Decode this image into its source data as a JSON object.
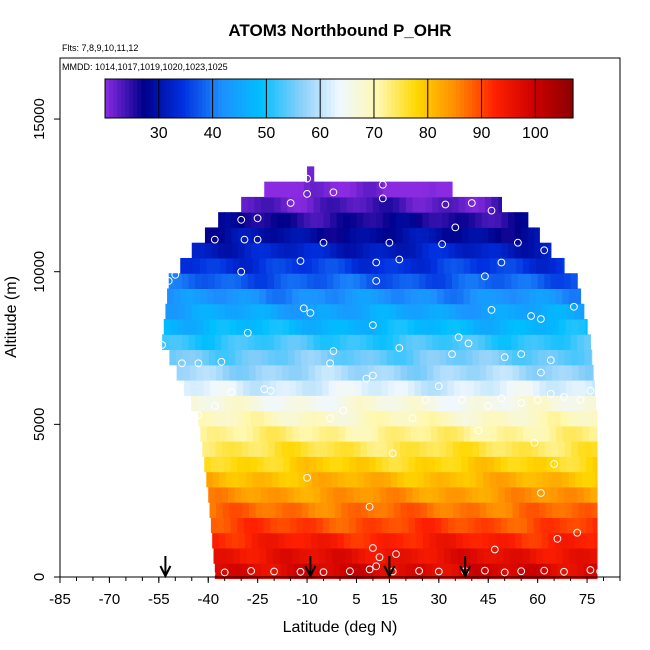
{
  "chart_data": {
    "type": "heatmap",
    "title": "ATOM3 Northbound P_OHR",
    "annotations": [
      "Flts: 7,8,9,10,11,12",
      "MMDD: 1014,1017,1019,1020,1023,1025"
    ],
    "xlabel": "Latitude (deg N)",
    "ylabel": "Altitude (m)",
    "xlim": [
      -85,
      85
    ],
    "ylim": [
      0,
      17000
    ],
    "x_ticks": [
      -85,
      -70,
      -55,
      -40,
      -25,
      -10,
      5,
      15,
      30,
      45,
      60,
      75
    ],
    "x_tick_labels": [
      "-85",
      "-70",
      "-55",
      "-40",
      "-25",
      "-10",
      "5",
      "15",
      "30",
      "45",
      "60",
      "75"
    ],
    "y_ticks": [
      0,
      5000,
      10000,
      15000
    ],
    "y_tick_labels": [
      "0",
      "5000",
      "10000",
      "15000"
    ],
    "colorbar": {
      "min": 20,
      "max": 107,
      "ticks": [
        30,
        40,
        50,
        60,
        70,
        80,
        90,
        100
      ],
      "tick_labels": [
        "30",
        "40",
        "50",
        "60",
        "70",
        "80",
        "90",
        "100"
      ],
      "colors": [
        "#8a2be2",
        "#00008b",
        "#0030e0",
        "#1e90ff",
        "#00bfff",
        "#87cefa",
        "#f0f8ff",
        "#fff8b0",
        "#ffd700",
        "#ff8c00",
        "#ff2000",
        "#cc0000",
        "#8b0000"
      ]
    },
    "altitude_values": [
      {
        "alt": 200,
        "value": 98
      },
      {
        "alt": 700,
        "value": 96
      },
      {
        "alt": 1200,
        "value": 93
      },
      {
        "alt": 1700,
        "value": 90
      },
      {
        "alt": 2200,
        "value": 87
      },
      {
        "alt": 2700,
        "value": 84
      },
      {
        "alt": 3200,
        "value": 81
      },
      {
        "alt": 3700,
        "value": 78
      },
      {
        "alt": 4200,
        "value": 75
      },
      {
        "alt": 4700,
        "value": 72
      },
      {
        "alt": 5200,
        "value": 69
      },
      {
        "alt": 5700,
        "value": 66
      },
      {
        "alt": 6200,
        "value": 62
      },
      {
        "alt": 6700,
        "value": 58
      },
      {
        "alt": 7200,
        "value": 55
      },
      {
        "alt": 7700,
        "value": 52
      },
      {
        "alt": 8200,
        "value": 48
      },
      {
        "alt": 8700,
        "value": 45
      },
      {
        "alt": 9200,
        "value": 42
      },
      {
        "alt": 9700,
        "value": 38
      },
      {
        "alt": 10200,
        "value": 35
      },
      {
        "alt": 10700,
        "value": 32
      },
      {
        "alt": 11200,
        "value": 29
      },
      {
        "alt": 11700,
        "value": 26
      },
      {
        "alt": 12200,
        "value": 23
      },
      {
        "alt": 12700,
        "value": 20
      },
      {
        "alt": 13200,
        "value": 20
      }
    ],
    "coverage_extent": [
      {
        "alt": 200,
        "lat_min": -38,
        "lat_max": 78
      },
      {
        "alt": 2700,
        "lat_min": -40,
        "lat_max": 78
      },
      {
        "alt": 5200,
        "lat_min": -43,
        "lat_max": 78
      },
      {
        "alt": 7700,
        "lat_min": -54,
        "lat_max": 76
      },
      {
        "alt": 9700,
        "lat_min": -52,
        "lat_max": 72
      },
      {
        "alt": 10700,
        "lat_min": -45,
        "lat_max": 64
      },
      {
        "alt": 11700,
        "lat_min": -37,
        "lat_max": 57
      },
      {
        "alt": 12200,
        "lat_min": -30,
        "lat_max": 49
      },
      {
        "alt": 12700,
        "lat_min": -23,
        "lat_max": 34
      },
      {
        "alt": 13200,
        "lat_min": -10,
        "lat_max": -8
      }
    ],
    "markers_lat": [
      -53,
      -9,
      15,
      38
    ],
    "points": [
      [
        -39,
        100
      ],
      [
        -35,
        150
      ],
      [
        -27,
        200
      ],
      [
        -20,
        180
      ],
      [
        -12,
        170
      ],
      [
        -5,
        160
      ],
      [
        3,
        190
      ],
      [
        9,
        250
      ],
      [
        11,
        350
      ],
      [
        16,
        180
      ],
      [
        24,
        200
      ],
      [
        30,
        180
      ],
      [
        38,
        190
      ],
      [
        44,
        210
      ],
      [
        50,
        150
      ],
      [
        55,
        190
      ],
      [
        62,
        210
      ],
      [
        68,
        170
      ],
      [
        76,
        230
      ],
      [
        79,
        180
      ],
      [
        10,
        950
      ],
      [
        12,
        650
      ],
      [
        17,
        750
      ],
      [
        47,
        900
      ],
      [
        66,
        1250
      ],
      [
        72,
        1450
      ],
      [
        9,
        2300
      ],
      [
        -10,
        3250
      ],
      [
        16,
        4050
      ],
      [
        61,
        2750
      ],
      [
        65,
        3700
      ],
      [
        59,
        4400
      ],
      [
        42,
        4800
      ],
      [
        -38,
        5600
      ],
      [
        -43,
        5300
      ],
      [
        -3,
        5200
      ],
      [
        1,
        5450
      ],
      [
        22,
        5200
      ],
      [
        26,
        5800
      ],
      [
        30,
        6250
      ],
      [
        37,
        5800
      ],
      [
        45,
        5600
      ],
      [
        49,
        5850
      ],
      [
        55,
        5700
      ],
      [
        60,
        5800
      ],
      [
        64,
        6000
      ],
      [
        68,
        5900
      ],
      [
        73,
        5800
      ],
      [
        76,
        6100
      ],
      [
        -33,
        6050
      ],
      [
        -23,
        6150
      ],
      [
        -21,
        6100
      ],
      [
        -36,
        7050
      ],
      [
        -43,
        7000
      ],
      [
        -48,
        7000
      ],
      [
        -28,
        8000
      ],
      [
        -3,
        7000
      ],
      [
        -2,
        7400
      ],
      [
        8,
        6500
      ],
      [
        10,
        6600
      ],
      [
        18,
        7500
      ],
      [
        34,
        7300
      ],
      [
        36,
        7850
      ],
      [
        39,
        7650
      ],
      [
        50,
        7200
      ],
      [
        55,
        7300
      ],
      [
        61,
        6700
      ],
      [
        64,
        7100
      ],
      [
        -54,
        7600
      ],
      [
        -11,
        8800
      ],
      [
        -9,
        8650
      ],
      [
        10,
        8250
      ],
      [
        46,
        8750
      ],
      [
        58,
        8550
      ],
      [
        61,
        8450
      ],
      [
        71,
        8850
      ],
      [
        -52,
        9700
      ],
      [
        -50,
        9900
      ],
      [
        -30,
        10000
      ],
      [
        -29,
        11050
      ],
      [
        -25,
        11050
      ],
      [
        -12,
        10350
      ],
      [
        -5,
        10950
      ],
      [
        11,
        9700
      ],
      [
        11,
        10300
      ],
      [
        15,
        10950
      ],
      [
        18,
        10400
      ],
      [
        31,
        10900
      ],
      [
        35,
        11450
      ],
      [
        44,
        9850
      ],
      [
        49,
        10300
      ],
      [
        54,
        10950
      ],
      [
        62,
        10700
      ],
      [
        70,
        10900
      ],
      [
        -38,
        11050
      ],
      [
        -30,
        11700
      ],
      [
        -25,
        11750
      ],
      [
        -15,
        12250
      ],
      [
        -10,
        12550
      ],
      [
        -2,
        12600
      ],
      [
        13,
        12400
      ],
      [
        32,
        12200
      ],
      [
        40,
        12250
      ],
      [
        46,
        12000
      ],
      [
        -14,
        13200
      ],
      [
        -10,
        13050
      ],
      [
        13,
        12850
      ]
    ]
  },
  "text": {
    "title": "ATOM3 Northbound P_OHR",
    "flts": "Flts: 7,8,9,10,11,12",
    "mmdd": "MMDD: 1014,1017,1019,1020,1023,1025",
    "xlabel": "Latitude (deg N)",
    "ylabel": "Altitude (m)"
  },
  "colors": {
    "frame": "#000000",
    "point_stroke": "#ffffff",
    "arrow": "#000000"
  }
}
